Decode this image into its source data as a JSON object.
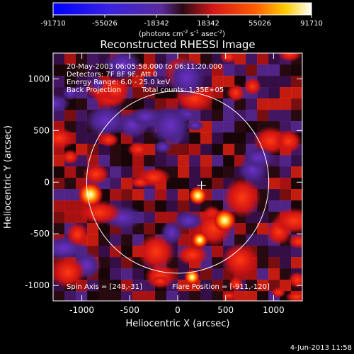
{
  "chart_data": {
    "type": "heatmap",
    "title": "Reconstructed RHESSI Image",
    "xlabel": "Heliocentric X (arcsec)",
    "ylabel": "Heliocentric Y (arcsec)",
    "xlim": [
      -1300,
      1300
    ],
    "ylim": [
      -1150,
      1250
    ],
    "x_ticks": [
      -1000,
      -500,
      0,
      500,
      1000
    ],
    "y_ticks": [
      -1000,
      -500,
      0,
      500,
      1000
    ],
    "colorbar": {
      "vmin": -91710,
      "vmax": 91710,
      "ticks": [
        "-91710",
        "-55026",
        "-18342",
        "18342",
        "55026",
        "91710"
      ],
      "unit_text": "(photons cm",
      "unit_exp1": "-2",
      "unit_mid": " s",
      "unit_exp2": "-1",
      "unit_mid2": " asec",
      "unit_exp3": "-2",
      "unit_close": ")",
      "colormap": "blue-purple-red-yellow-white"
    },
    "annotations": {
      "line1": "20-May-2003 06:05:58.000 to 06:11:20.000",
      "line2": "Detectors: 7F 8F 9F, Att 0",
      "line3": "Energy Range: 6.0 - 25.0 keV",
      "line4a": "Back Projection",
      "line4b": "Total counts: 1.35E+05",
      "spin_axis": "Spin Axis = [248,-31]",
      "flare_position": "Flare Position = [-911,-120]"
    },
    "solar_limb": {
      "center": [
        0,
        0
      ],
      "radius": 950
    },
    "spin_axis_point": [
      248,
      -31
    ],
    "sources": [
      {
        "x": -911,
        "y": -120,
        "intensity": 91710
      },
      {
        "x": 490,
        "y": -370,
        "intensity": 78000
      },
      {
        "x": 210,
        "y": -130,
        "intensity": 55000
      },
      {
        "x": 230,
        "y": -560,
        "intensity": 45000
      },
      {
        "x": 150,
        "y": -920,
        "intensity": 40000
      }
    ],
    "grid": false,
    "legend": "none"
  },
  "footer": {
    "timestamp": "4-Jun-2013 11:58"
  }
}
